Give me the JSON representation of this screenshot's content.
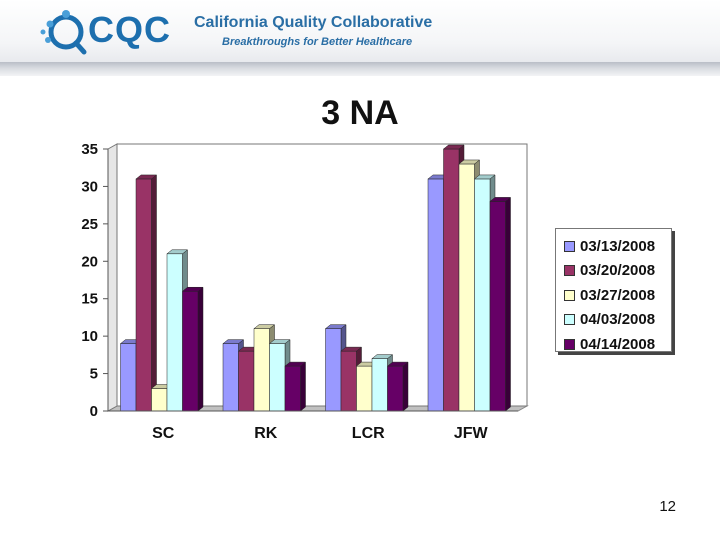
{
  "header": {
    "logo_text": "CQC",
    "org_name": "California Quality Collaborative",
    "tagline": "Breakthroughs for Better Healthcare"
  },
  "slide": {
    "title": "3 NA",
    "page_number": "12"
  },
  "colors": {
    "accent": "#1d6fae",
    "series": [
      "#9999ff",
      "#993366",
      "#ffffcc",
      "#ccffff",
      "#660066"
    ]
  },
  "chart_data": {
    "type": "bar",
    "style": "3d-clustered",
    "categories": [
      "SC",
      "RK",
      "LCR",
      "JFW"
    ],
    "series": [
      {
        "name": "03/13/2008",
        "values": [
          9,
          9,
          11,
          31
        ]
      },
      {
        "name": "03/20/2008",
        "values": [
          31,
          8,
          8,
          35
        ]
      },
      {
        "name": "03/27/2008",
        "values": [
          3,
          11,
          6,
          33
        ]
      },
      {
        "name": "04/03/2008",
        "values": [
          21,
          9,
          7,
          31
        ]
      },
      {
        "name": "04/14/2008",
        "values": [
          16,
          6,
          6,
          28
        ]
      }
    ],
    "yticks": [
      "0",
      "5",
      "10",
      "15",
      "20",
      "25",
      "30",
      "35"
    ],
    "ylim": [
      0,
      35
    ],
    "legend_position": "right",
    "grid": false
  }
}
